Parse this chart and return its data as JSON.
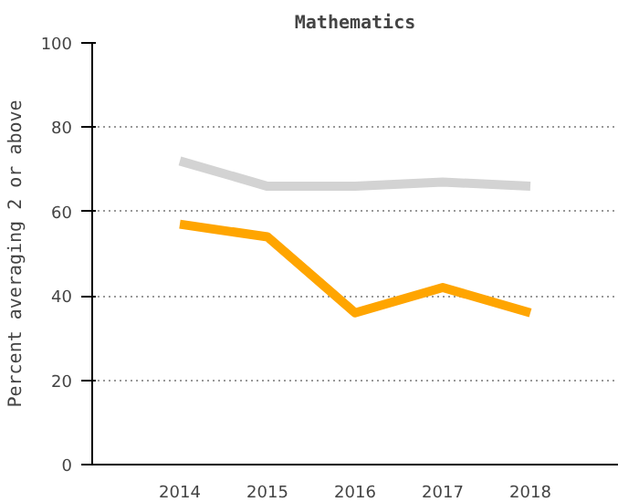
{
  "chart_data": {
    "type": "line",
    "title": "Mathematics",
    "ylabel": "Percent averaging 2 or above",
    "categories": [
      "2014",
      "2015",
      "2016",
      "2017",
      "2018"
    ],
    "series": [
      {
        "color": "#d3d3d3",
        "values": [
          72,
          66,
          66,
          67,
          66
        ]
      },
      {
        "color": "#ffa500",
        "values": [
          57,
          54,
          36,
          42,
          36
        ]
      }
    ],
    "ylim": [
      0,
      100
    ],
    "yticks": [
      0,
      20,
      40,
      60,
      80,
      100
    ],
    "grid": "y",
    "line_style": "solid",
    "marker": "none"
  }
}
